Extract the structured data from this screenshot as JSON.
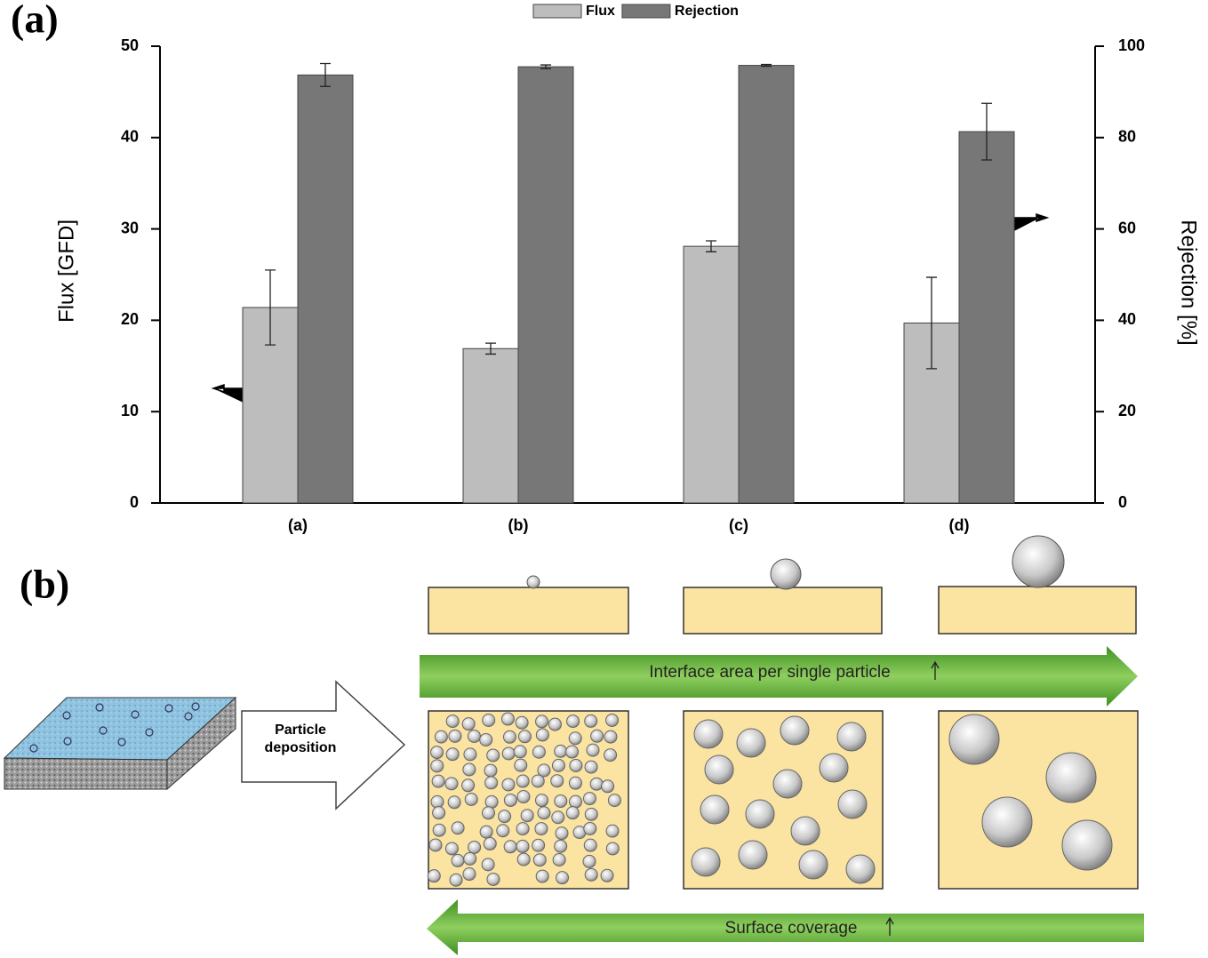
{
  "figure_labels": [
    "(a)",
    "(b)"
  ],
  "chart_data": {
    "type": "bar",
    "categories": [
      "(a)",
      "(b)",
      "(c)",
      "(d)"
    ],
    "series": [
      {
        "name": "Flux",
        "color": "#bdbdbd",
        "values": [
          21.4,
          16.9,
          28.1,
          19.7
        ],
        "errors": [
          4.1,
          0.6,
          0.6,
          5.0
        ]
      },
      {
        "name": "Rejection",
        "color": "#777777",
        "axis": "y2",
        "values": [
          93.7,
          95.5,
          95.8,
          81.3
        ],
        "errors": [
          2.5,
          0.4,
          0.2,
          6.2
        ]
      }
    ],
    "ylabel": "Flux [GFD]",
    "y2label": "Rejection [%]",
    "ylim": [
      0,
      50
    ],
    "yticks": [
      0,
      10,
      20,
      30,
      40,
      50
    ],
    "y2lim": [
      0,
      100
    ],
    "y2ticks": [
      0,
      20,
      40,
      60,
      80,
      100
    ],
    "legend": "upper center"
  },
  "diagram": {
    "deposition_label": [
      "Particle",
      "deposition"
    ],
    "top_arrow_label": "Interface area per single particle",
    "bottom_arrow_label": "Surface coverage"
  }
}
